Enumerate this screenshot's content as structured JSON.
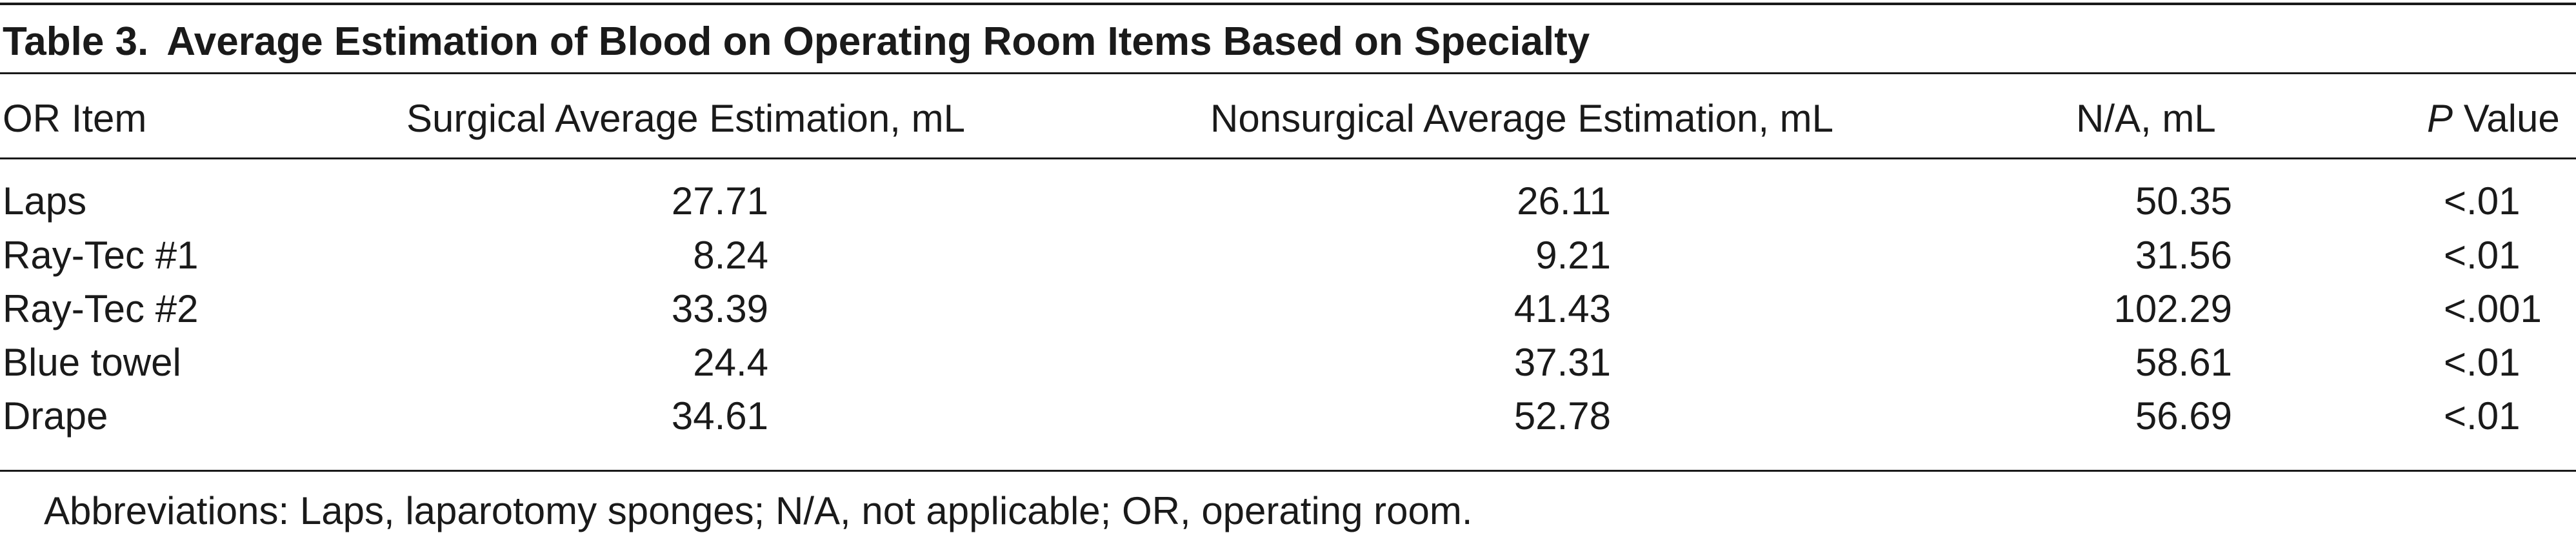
{
  "table": {
    "label": "Table 3.",
    "title": "Average Estimation of Blood on Operating Room Items Based on Specialty",
    "headers": {
      "item": "OR Item",
      "surgical": "Surgical Average Estimation, mL",
      "nonsurgical": "Nonsurgical Average Estimation, mL",
      "na": "N/A, mL",
      "p_italic": "P",
      "p_rest": " Value"
    },
    "rows": [
      {
        "item": "Laps",
        "surgical": "27.71",
        "nonsurgical": "26.11",
        "na": "50.35",
        "p": "<.01"
      },
      {
        "item": "Ray-Tec #1",
        "surgical": "8.24",
        "nonsurgical": "9.21",
        "na": "31.56",
        "p": "<.01"
      },
      {
        "item": "Ray-Tec #2",
        "surgical": "33.39",
        "nonsurgical": "41.43",
        "na": "102.29",
        "p": "<.001"
      },
      {
        "item": "Blue towel",
        "surgical": "24.4",
        "nonsurgical": "37.31",
        "na": "58.61",
        "p": "<.01"
      },
      {
        "item": "Drape",
        "surgical": "34.61",
        "nonsurgical": "52.78",
        "na": "56.69",
        "p": "<.01"
      }
    ],
    "footnote": "Abbreviations: Laps, laparotomy sponges; N/A, not applicable; OR, operating room."
  }
}
